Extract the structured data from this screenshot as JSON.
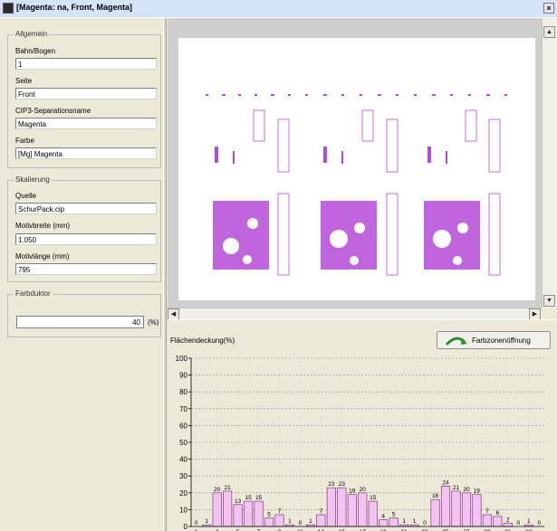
{
  "window": {
    "title": "[Magenta: na, Front, Magenta]",
    "close_glyph": "×"
  },
  "allgemein": {
    "legend": "Allgemein",
    "fields": [
      {
        "label": "Bahn/Bogen",
        "value": "1"
      },
      {
        "label": "Seite",
        "value": "Front"
      },
      {
        "label": "CIP3-Separationsname",
        "value": "Magenta"
      },
      {
        "label": "Farbe",
        "value": "[Mg] Magenta"
      }
    ]
  },
  "skalierung": {
    "legend": "Skalierung",
    "fields": [
      {
        "label": "Quelle",
        "value": "SchurPack.cip"
      },
      {
        "label": "Motivbreite (mm)",
        "value": "1.050"
      },
      {
        "label": "Motivlänge (mm)",
        "value": "795"
      }
    ]
  },
  "farbduktor": {
    "legend": "Farbduktor",
    "value": "40",
    "unit": "(%)"
  },
  "chart_header": {
    "title": "Flächendeckung(%)",
    "button_label": "Farbzonenöffnung",
    "button_icon": "arrow-curve-icon"
  },
  "colors": {
    "bar_fill": "#f3c2f3",
    "bar_stroke": "#7a3d7a",
    "preview_magenta": "#b54ad8",
    "title_bar": "#d5e3f8"
  },
  "chart_data": {
    "type": "bar",
    "title": "Flächendeckung(%)",
    "xlabel": "",
    "ylabel": "",
    "ylim": [
      0,
      100
    ],
    "yticks": [
      0,
      10,
      20,
      30,
      40,
      50,
      60,
      70,
      80,
      90,
      100
    ],
    "grid": true,
    "categories": [
      1,
      2,
      3,
      4,
      5,
      6,
      7,
      8,
      9,
      10,
      11,
      12,
      13,
      14,
      15,
      16,
      17,
      18,
      19,
      20,
      21,
      22,
      23,
      24,
      25,
      26,
      27,
      28,
      29,
      30,
      31,
      32,
      33,
      34
    ],
    "xtick_labels": [
      "1",
      "3",
      "5",
      "7",
      "9",
      "11",
      "13",
      "15",
      "17",
      "19",
      "21",
      "23",
      "25",
      "27",
      "29",
      "31",
      "33"
    ],
    "values": [
      0,
      1,
      20,
      21,
      13,
      15,
      15,
      5,
      7,
      1,
      0,
      1,
      7,
      23,
      23,
      19,
      20,
      15,
      4,
      5,
      1,
      1,
      0,
      16,
      24,
      21,
      20,
      19,
      7,
      6,
      2,
      0,
      1,
      0
    ]
  }
}
